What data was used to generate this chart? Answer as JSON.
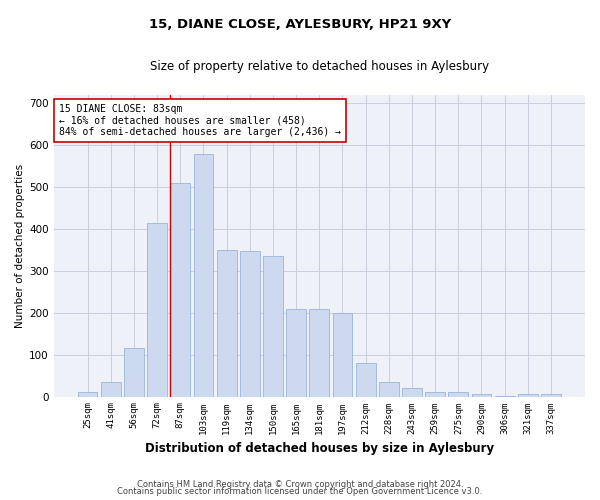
{
  "title": "15, DIANE CLOSE, AYLESBURY, HP21 9XY",
  "subtitle": "Size of property relative to detached houses in Aylesbury",
  "xlabel": "Distribution of detached houses by size in Aylesbury",
  "ylabel": "Number of detached properties",
  "bar_color": "#ccd9ee",
  "bar_edge_color": "#9ab5d9",
  "grid_color": "#c8d0de",
  "background_color": "#eef2f8",
  "categories": [
    "25sqm",
    "41sqm",
    "56sqm",
    "72sqm",
    "87sqm",
    "103sqm",
    "119sqm",
    "134sqm",
    "150sqm",
    "165sqm",
    "181sqm",
    "197sqm",
    "212sqm",
    "228sqm",
    "243sqm",
    "259sqm",
    "275sqm",
    "290sqm",
    "306sqm",
    "321sqm",
    "337sqm"
  ],
  "values": [
    10,
    35,
    115,
    415,
    510,
    580,
    350,
    348,
    335,
    210,
    210,
    200,
    80,
    35,
    20,
    12,
    12,
    5,
    2,
    5,
    5
  ],
  "ylim": [
    0,
    720
  ],
  "yticks": [
    0,
    100,
    200,
    300,
    400,
    500,
    600,
    700
  ],
  "marker_line_color": "#cc0000",
  "annotation_text": "15 DIANE CLOSE: 83sqm\n← 16% of detached houses are smaller (458)\n84% of semi-detached houses are larger (2,436) →",
  "footer1": "Contains HM Land Registry data © Crown copyright and database right 2024.",
  "footer2": "Contains public sector information licensed under the Open Government Licence v3.0."
}
